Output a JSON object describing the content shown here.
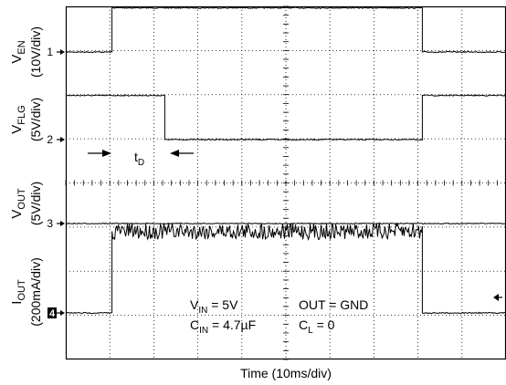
{
  "chart_data": {
    "type": "line",
    "xlabel": "Time (10ms/div)",
    "grid": true,
    "divisions": {
      "x": 10,
      "y": 8
    },
    "channels": [
      {
        "id": "1",
        "name_main": "V",
        "name_sub": "EN",
        "scale": "(10V/div)"
      },
      {
        "id": "2",
        "name_main": "V",
        "name_sub": "FLG",
        "scale": "(5V/div)"
      },
      {
        "id": "3",
        "name_main": "V",
        "name_sub": "OUT",
        "scale": "(5V/div)"
      },
      {
        "id": "4",
        "name_main": "I",
        "name_sub": "OUT",
        "scale": "(200mA/div)"
      }
    ],
    "series": [
      {
        "name": "VEN",
        "points": [
          [
            0,
            0
          ],
          [
            1.05,
            0
          ],
          [
            1.05,
            1.0
          ],
          [
            8.1,
            1.0
          ],
          [
            8.1,
            0
          ],
          [
            10,
            0
          ]
        ]
      },
      {
        "name": "VFLG",
        "points": [
          [
            0,
            1.0
          ],
          [
            2.25,
            1.0
          ],
          [
            2.25,
            0
          ],
          [
            8.1,
            0
          ],
          [
            8.1,
            1.0
          ],
          [
            10,
            1.0
          ]
        ]
      },
      {
        "name": "VOUT",
        "points": [
          [
            0,
            0
          ],
          [
            10,
            0
          ]
        ]
      },
      {
        "name": "IOUT",
        "points": [
          [
            0,
            0
          ],
          [
            1.05,
            0
          ],
          [
            1.05,
            1.85
          ],
          [
            8.1,
            1.85
          ],
          [
            8.1,
            0
          ],
          [
            10,
            0
          ]
        ]
      }
    ],
    "annotations": {
      "td": {
        "main": "t",
        "sub": "D"
      },
      "conditions": {
        "vin": {
          "main": "V",
          "sub": "IN",
          "rest": " = 5V"
        },
        "cin": {
          "main": "C",
          "sub": "IN",
          "rest": " = 4.7µF"
        },
        "out": "OUT = GND",
        "cl": {
          "main": "C",
          "sub": "L",
          "rest": " = 0"
        }
      }
    }
  }
}
